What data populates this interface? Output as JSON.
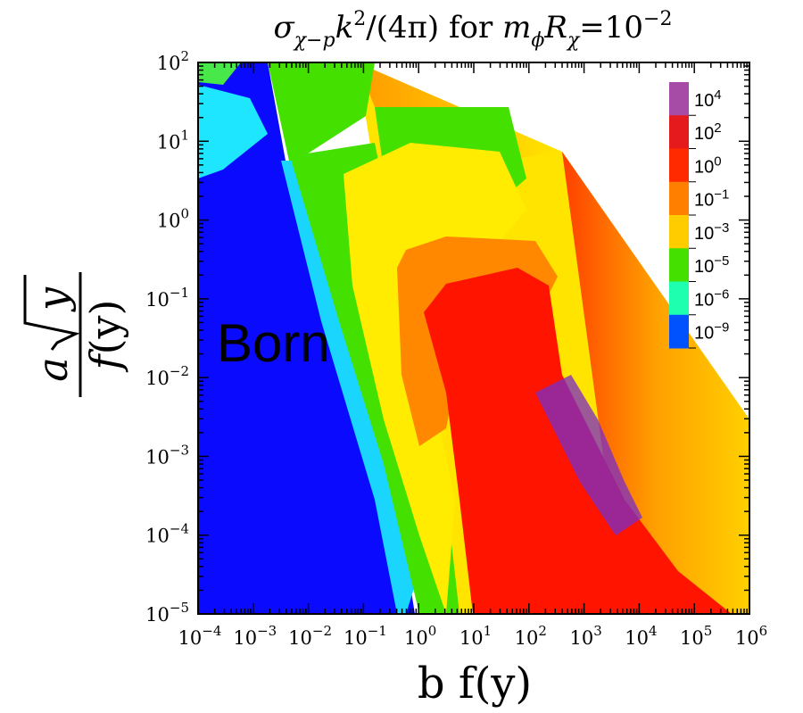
{
  "chart_data": {
    "type": "heatmap",
    "title": {
      "sigma": "σ",
      "sub1": "χ−p",
      "k": "k",
      "sup1": "2",
      "mid": "/(4π) for ",
      "m": "m",
      "sub2": "ϕ",
      "R": "R",
      "sub3": "χ",
      "eq": "=10",
      "sup2": "−2"
    },
    "xlabel": "b f(y)",
    "ylabel": {
      "a": "a",
      "y": "y",
      "f": "f",
      "paren_y": "(y)"
    },
    "xscale": "log",
    "yscale": "log",
    "xlim": [
      0.0001,
      1000000
    ],
    "ylim": [
      1e-05,
      100
    ],
    "x_ticks": [
      {
        "base": "10",
        "exp": "−4"
      },
      {
        "base": "10",
        "exp": "−3"
      },
      {
        "base": "10",
        "exp": "−2"
      },
      {
        "base": "10",
        "exp": "−1"
      },
      {
        "base": "10",
        "exp": "0"
      },
      {
        "base": "10",
        "exp": "1"
      },
      {
        "base": "10",
        "exp": "2"
      },
      {
        "base": "10",
        "exp": "3"
      },
      {
        "base": "10",
        "exp": "4"
      },
      {
        "base": "10",
        "exp": "5"
      },
      {
        "base": "10",
        "exp": "6"
      }
    ],
    "y_ticks": [
      {
        "base": "10",
        "exp": "2"
      },
      {
        "base": "10",
        "exp": "1"
      },
      {
        "base": "10",
        "exp": "0"
      },
      {
        "base": "10",
        "exp": "−1"
      },
      {
        "base": "10",
        "exp": "−2"
      },
      {
        "base": "10",
        "exp": "−3"
      },
      {
        "base": "10",
        "exp": "−4"
      },
      {
        "base": "10",
        "exp": "−5"
      }
    ],
    "colorbar": [
      {
        "base": "10",
        "exp": "4",
        "color": "#a64ca6"
      },
      {
        "base": "10",
        "exp": "2",
        "color": "#e41a1c"
      },
      {
        "base": "10",
        "exp": "0",
        "color": "#ff2a00"
      },
      {
        "base": "10",
        "exp": "−1",
        "color": "#ff7f00"
      },
      {
        "base": "10",
        "exp": "−3",
        "color": "#ffcc00"
      },
      {
        "base": "10",
        "exp": "−5",
        "color": "#44e000"
      },
      {
        "base": "10",
        "exp": "−6",
        "color": "#1fffb0"
      },
      {
        "base": "10",
        "exp": "−9",
        "color": "#0052ff"
      }
    ],
    "annotation": "Born",
    "grid": false,
    "legend_position": "top-right"
  }
}
